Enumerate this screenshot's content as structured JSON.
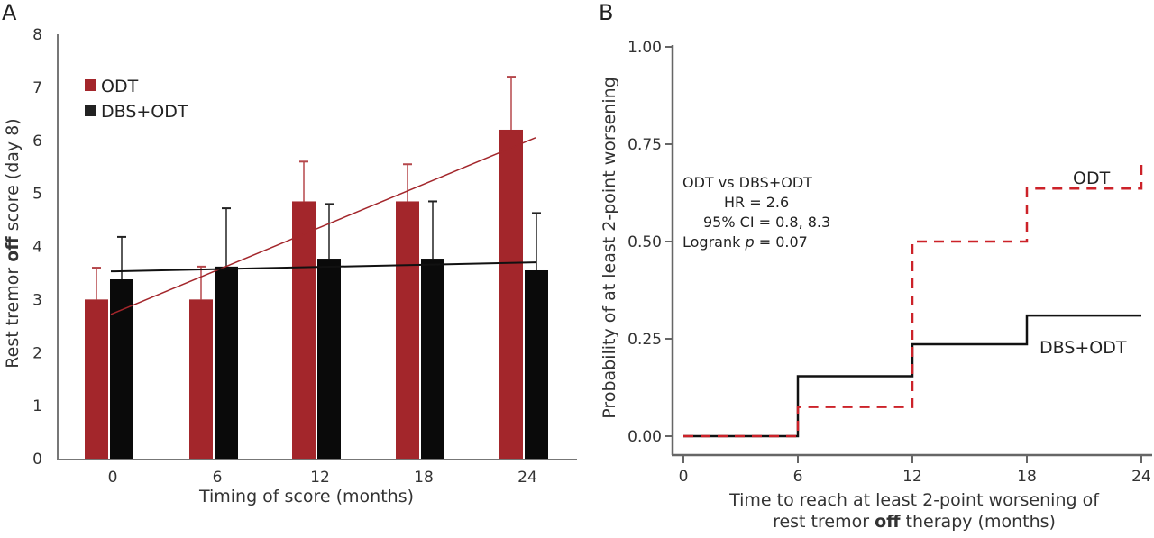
{
  "chart_data": [
    {
      "panel": "A",
      "type": "bar",
      "title": "",
      "xlabel": "Timing of score (months)",
      "ylabel_parts": [
        "Rest tremor ",
        "off",
        " score (day 8)"
      ],
      "ylabel": "Rest tremor off score (day 8)",
      "categories": [
        "0",
        "6",
        "12",
        "18",
        "24"
      ],
      "ylim": [
        0,
        8
      ],
      "yticks": [
        0,
        1,
        2,
        3,
        4,
        5,
        6,
        7,
        8
      ],
      "grid": false,
      "legend_position": "top-left",
      "series": [
        {
          "name": "ODT",
          "color": "#a3262b",
          "values": [
            3.0,
            3.0,
            4.85,
            4.85,
            6.2
          ],
          "error_upper": [
            3.6,
            3.62,
            5.6,
            5.55,
            7.2
          ],
          "trendline": [
            2.72,
            6.05
          ]
        },
        {
          "name": "DBS+ODT",
          "color": "#0a0a0a",
          "values": [
            3.38,
            3.62,
            3.77,
            3.77,
            3.55
          ],
          "error_upper": [
            4.18,
            4.72,
            4.8,
            4.85,
            4.63
          ],
          "trendline": [
            3.53,
            3.7
          ]
        }
      ]
    },
    {
      "panel": "B",
      "type": "line",
      "subtype": "kaplan-meier step",
      "title": "",
      "xlabel_line1": "Time to reach at least 2-point worsening of",
      "xlabel_line2_parts": [
        "rest tremor ",
        "off",
        " therapy (months)"
      ],
      "ylabel": "Probability of at least 2-point worsening",
      "xlim": [
        0,
        24
      ],
      "ylim": [
        0,
        1
      ],
      "xticks": [
        0,
        6,
        12,
        18,
        24
      ],
      "yticks": [
        "0.00",
        "0.25",
        "0.50",
        "0.75",
        "1.00"
      ],
      "grid": false,
      "series": [
        {
          "name": "ODT",
          "color": "#cc2229",
          "style": "dashed",
          "x": [
            0,
            6,
            12,
            18,
            24
          ],
          "y": [
            0.0,
            0.075,
            0.5,
            0.636,
            0.7
          ]
        },
        {
          "name": "DBS+ODT",
          "color": "#111111",
          "style": "solid",
          "x": [
            0,
            6,
            12,
            18,
            24
          ],
          "y": [
            0.0,
            0.154,
            0.236,
            0.31,
            0.31
          ]
        }
      ],
      "annotation": {
        "line1": "ODT vs DBS+ODT",
        "line2": "HR = 2.6",
        "line3": "95% CI = 0.8, 8.3",
        "line4_prefix": "Logrank ",
        "line4_italic": "p",
        "line4_suffix": " = 0.07"
      }
    }
  ],
  "panels": {
    "a_label": "A",
    "b_label": "B"
  }
}
